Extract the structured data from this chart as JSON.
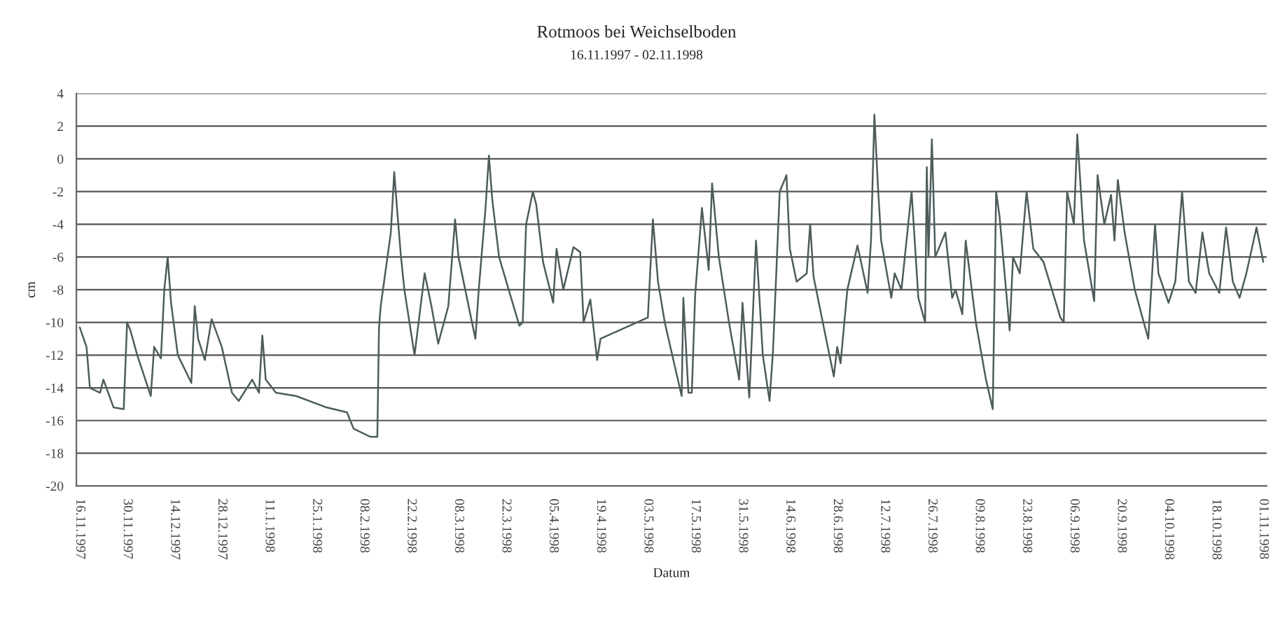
{
  "chart_data": {
    "type": "line",
    "title": "Rotmoos bei Weichselboden",
    "subtitle": "16.11.1997 - 02.11.1998",
    "xlabel": "Datum",
    "ylabel": "cm",
    "ylim": [
      -20,
      4
    ],
    "yticks": [
      -20,
      -18,
      -16,
      -14,
      -12,
      -10,
      -8,
      -6,
      -4,
      -2,
      0,
      2,
      4
    ],
    "xlim": [
      "1997-11-15",
      "1998-11-02"
    ],
    "xticks": [
      {
        "value": "1997-11-16",
        "label": "16.11.1997"
      },
      {
        "value": "1997-11-30",
        "label": "30.11.1997"
      },
      {
        "value": "1997-12-14",
        "label": "14.12.1997"
      },
      {
        "value": "1997-12-28",
        "label": "28.12.1997"
      },
      {
        "value": "1998-01-11",
        "label": "11.1.1998"
      },
      {
        "value": "1998-01-25",
        "label": "25.1.1998"
      },
      {
        "value": "1998-02-08",
        "label": "08.2.1998"
      },
      {
        "value": "1998-02-22",
        "label": "22.2.1998"
      },
      {
        "value": "1998-03-08",
        "label": "08.3.1998"
      },
      {
        "value": "1998-03-22",
        "label": "22.3.1998"
      },
      {
        "value": "1998-04-05",
        "label": "05.4.1998"
      },
      {
        "value": "1998-04-19",
        "label": "19.4.1998"
      },
      {
        "value": "1998-05-03",
        "label": "03.5.1998"
      },
      {
        "value": "1998-05-17",
        "label": "17.5.1998"
      },
      {
        "value": "1998-05-31",
        "label": "31.5.1998"
      },
      {
        "value": "1998-06-14",
        "label": "14.6.1998"
      },
      {
        "value": "1998-06-28",
        "label": "28.6.1998"
      },
      {
        "value": "1998-07-12",
        "label": "12.7.1998"
      },
      {
        "value": "1998-07-26",
        "label": "26.7.1998"
      },
      {
        "value": "1998-08-09",
        "label": "09.8.1998"
      },
      {
        "value": "1998-08-23",
        "label": "23.8.1998"
      },
      {
        "value": "1998-09-06",
        "label": "06.9.1998"
      },
      {
        "value": "1998-09-20",
        "label": "20.9.1998"
      },
      {
        "value": "1998-10-04",
        "label": "04.10.1998"
      },
      {
        "value": "1998-10-18",
        "label": "18.10.1998"
      },
      {
        "value": "1998-11-01",
        "label": "01.11.1998"
      }
    ],
    "grid": "y",
    "line_style": "solid",
    "marker": "none",
    "series": [
      {
        "color": "#4d5c5c",
        "x": [
          "1997-11-16",
          "1997-11-18",
          "1997-11-19",
          "1997-11-22",
          "1997-11-23",
          "1997-11-26",
          "1997-11-29",
          "1997-11-30",
          "1997-12-01",
          "1997-12-03",
          "1997-12-07",
          "1997-12-08",
          "1997-12-10",
          "1997-12-11",
          "1997-12-12",
          "1997-12-13",
          "1997-12-15",
          "1997-12-19",
          "1997-12-20",
          "1997-12-21",
          "1997-12-23",
          "1997-12-25",
          "1997-12-28",
          "1997-12-31",
          "1998-01-02",
          "1998-01-06",
          "1998-01-08",
          "1998-01-09",
          "1998-01-10",
          "1998-01-13",
          "1998-01-19",
          "1998-01-28",
          "1998-02-03",
          "1998-02-05",
          "1998-02-10",
          "1998-02-12",
          "1998-02-12T12:00",
          "1998-02-13",
          "1998-02-15",
          "1998-02-16",
          "1998-02-17",
          "1998-02-18",
          "1998-02-19",
          "1998-02-20",
          "1998-02-23",
          "1998-02-26",
          "1998-02-28",
          "1998-03-02",
          "1998-03-05",
          "1998-03-07",
          "1998-03-08",
          "1998-03-13",
          "1998-03-14",
          "1998-03-16",
          "1998-03-17",
          "1998-03-18",
          "1998-03-20",
          "1998-03-26",
          "1998-03-27",
          "1998-03-28",
          "1998-03-30",
          "1998-03-31",
          "1998-04-02",
          "1998-04-05",
          "1998-04-06",
          "1998-04-08",
          "1998-04-11",
          "1998-04-13",
          "1998-04-14",
          "1998-04-16",
          "1998-04-18",
          "1998-04-19",
          "1998-05-03",
          "1998-05-04T12:00",
          "1998-05-06",
          "1998-05-08",
          "1998-05-13",
          "1998-05-13T12:00",
          "1998-05-15",
          "1998-05-16",
          "1998-05-17",
          "1998-05-19",
          "1998-05-21",
          "1998-05-22",
          "1998-05-24",
          "1998-05-27",
          "1998-05-30",
          "1998-05-31",
          "1998-06-02",
          "1998-06-04",
          "1998-06-06",
          "1998-06-08",
          "1998-06-09",
          "1998-06-11",
          "1998-06-13",
          "1998-06-14",
          "1998-06-16",
          "1998-06-19",
          "1998-06-20",
          "1998-06-21",
          "1998-06-26",
          "1998-06-27",
          "1998-06-28",
          "1998-06-29",
          "1998-07-01",
          "1998-07-04",
          "1998-07-07",
          "1998-07-08",
          "1998-07-09",
          "1998-07-10",
          "1998-07-11",
          "1998-07-14",
          "1998-07-15",
          "1998-07-17",
          "1998-07-20",
          "1998-07-22",
          "1998-07-24",
          "1998-07-24T12:00",
          "1998-07-25",
          "1998-07-26",
          "1998-07-27",
          "1998-07-30",
          "1998-08-01",
          "1998-08-02",
          "1998-08-04",
          "1998-08-05",
          "1998-08-08",
          "1998-08-11",
          "1998-08-13",
          "1998-08-14",
          "1998-08-15",
          "1998-08-18",
          "1998-08-19",
          "1998-08-21",
          "1998-08-23",
          "1998-08-25",
          "1998-08-28",
          "1998-09-02",
          "1998-09-03",
          "1998-09-04",
          "1998-09-06",
          "1998-09-07",
          "1998-09-09",
          "1998-09-12",
          "1998-09-13",
          "1998-09-15",
          "1998-09-17",
          "1998-09-18",
          "1998-09-19",
          "1998-09-21",
          "1998-09-24",
          "1998-09-28",
          "1998-09-30",
          "1998-10-01",
          "1998-10-04",
          "1998-10-06",
          "1998-10-08",
          "1998-10-10",
          "1998-10-12",
          "1998-10-14",
          "1998-10-16",
          "1998-10-19",
          "1998-10-21",
          "1998-10-23",
          "1998-10-25",
          "1998-10-27",
          "1998-10-30",
          "1998-11-01"
        ],
        "values": [
          -10.3,
          -11.5,
          -14,
          -14.3,
          -13.5,
          -15.2,
          -15.3,
          -10,
          -10.5,
          -12,
          -14.5,
          -11.5,
          -12.2,
          -8,
          -6,
          -8.8,
          -12,
          -13.7,
          -9,
          -11,
          -12.3,
          -9.8,
          -11.5,
          -14.3,
          -14.8,
          -13.5,
          -14.3,
          -10.8,
          -13.5,
          -14.3,
          -14.5,
          -15.2,
          -15.5,
          -16.5,
          -17,
          -17,
          -10.3,
          -9,
          -6,
          -4.5,
          -0.8,
          -3.5,
          -6,
          -8,
          -12,
          -7,
          -9,
          -11.3,
          -9,
          -3.7,
          -6,
          -11,
          -8,
          -3,
          0.2,
          -2.5,
          -6,
          -10.2,
          -10,
          -4,
          -2,
          -2.8,
          -6.3,
          -8.8,
          -5.5,
          -8,
          -5.4,
          -5.7,
          -10,
          -8.6,
          -12.3,
          -11,
          -9.7,
          -3.7,
          -7.5,
          -10,
          -14.5,
          -8.5,
          -14.3,
          -14.3,
          -8.3,
          -3,
          -6.8,
          -1.5,
          -6,
          -10,
          -13.5,
          -8.8,
          -14.6,
          -5,
          -12,
          -14.8,
          -11.8,
          -2,
          -1,
          -5.5,
          -7.5,
          -7,
          -4,
          -7.2,
          -12.3,
          -13.3,
          -11.5,
          -12.5,
          -8,
          -5.3,
          -8.2,
          -5,
          2.7,
          -1.5,
          -5,
          -8.5,
          -7,
          -8,
          -2,
          -8.5,
          -10,
          -0.5,
          -6,
          1.2,
          -6,
          -4.5,
          -8.5,
          -8,
          -9.5,
          -5,
          -10,
          -13.5,
          -15.3,
          -2,
          -3.5,
          -10.5,
          -6,
          -7,
          -2,
          -5.5,
          -6.3,
          -9.7,
          -10,
          -2,
          -4,
          1.5,
          -5,
          -8.7,
          -1,
          -4,
          -2.2,
          -5,
          -1.3,
          -4.5,
          -8,
          -11,
          -4,
          -7,
          -8.8,
          -7.5,
          -2,
          -7.5,
          -8.2,
          -4.5,
          -7,
          -8.2,
          -4.2,
          -7.5,
          -8.5,
          -7,
          -4.2,
          -6.3
        ]
      }
    ]
  }
}
